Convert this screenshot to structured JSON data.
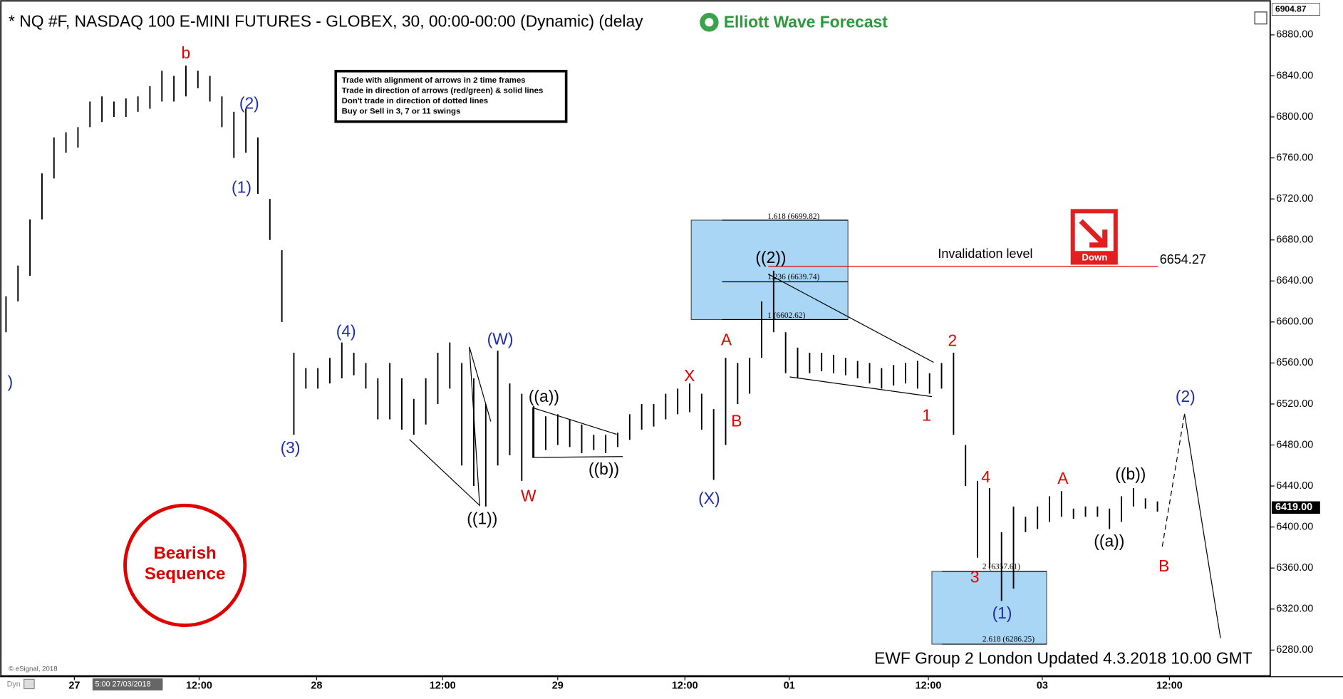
{
  "header": {
    "title": "* NQ #F, NASDAQ 100 E-MINI FUTURES - GLOBEX, 30, 00:00-00:00 (Dynamic) (delay",
    "logo": "Elliott Wave Forecast"
  },
  "chart_data": {
    "type": "ohlc",
    "color": "#000000",
    "highs": [
      6625,
      6655,
      6700,
      6745,
      6780,
      6785,
      6790,
      6815,
      6820,
      6815,
      6818,
      6820,
      6830,
      6845,
      6840,
      6850,
      6845,
      6840,
      6820,
      6805,
      6808,
      6780,
      6720,
      6670,
      6570,
      6555,
      6555,
      6565,
      6580,
      6570,
      6560,
      6545,
      6560,
      6545,
      6525,
      6545,
      6570,
      6580,
      6560,
      6545,
      6520,
      6572,
      6540,
      6530,
      6518,
      6508,
      6510,
      6505,
      6500,
      6490,
      6490,
      6492,
      6510,
      6520,
      6520,
      6530,
      6535,
      6540,
      6530,
      6515,
      6565,
      6560,
      6565,
      6620,
      6650,
      6590,
      6575,
      6570,
      6570,
      6568,
      6565,
      6562,
      6560,
      6555,
      6558,
      6560,
      6562,
      6550,
      6560,
      6570,
      6480,
      6445,
      6438,
      6395,
      6420,
      6410,
      6420,
      6430,
      6435,
      6418,
      6420,
      6420,
      6418,
      6430,
      6438,
      6428,
      6425
    ],
    "lows": [
      6590,
      6620,
      6645,
      6700,
      6740,
      6765,
      6770,
      6790,
      6795,
      6800,
      6800,
      6805,
      6808,
      6815,
      6815,
      6820,
      6828,
      6815,
      6790,
      6760,
      6765,
      6725,
      6680,
      6600,
      6490,
      6535,
      6535,
      6540,
      6545,
      6548,
      6535,
      6505,
      6505,
      6495,
      6490,
      6500,
      6520,
      6535,
      6460,
      6440,
      6420,
      6460,
      6470,
      6445,
      6468,
      6475,
      6480,
      6478,
      6472,
      6475,
      6472,
      6478,
      6485,
      6495,
      6498,
      6505,
      6510,
      6512,
      6495,
      6446,
      6480,
      6520,
      6530,
      6565,
      6590,
      6550,
      6545,
      6550,
      6552,
      6550,
      6548,
      6545,
      6540,
      6535,
      6538,
      6540,
      6535,
      6530,
      6535,
      6490,
      6440,
      6370,
      6360,
      6328,
      6340,
      6395,
      6398,
      6405,
      6410,
      6408,
      6410,
      6410,
      6398,
      6405,
      6420,
      6418,
      6415
    ],
    "xlim": [
      -0.5,
      105.4
    ],
    "xticks": [
      {
        "value": 5.7,
        "label": "27"
      },
      {
        "value": 16.1,
        "label": "12:00"
      },
      {
        "value": 25.9,
        "label": "28"
      },
      {
        "value": 36.4,
        "label": "12:00"
      },
      {
        "value": 46,
        "label": "29"
      },
      {
        "value": 56.6,
        "label": "12:00"
      },
      {
        "value": 65.3,
        "label": "01"
      },
      {
        "value": 76.9,
        "label": "12:00"
      },
      {
        "value": 86.4,
        "label": "03"
      },
      {
        "value": 97,
        "label": "12:00"
      }
    ],
    "ylim": [
      6254,
      6914
    ],
    "yticks": [
      {
        "value": 6280,
        "label": "6280.00"
      },
      {
        "value": 6320,
        "label": "6320.00"
      },
      {
        "value": 6360,
        "label": "6360.00"
      },
      {
        "value": 6400,
        "label": "6400.00"
      },
      {
        "value": 6440,
        "label": "6440.00"
      },
      {
        "value": 6480,
        "label": "6480.00"
      },
      {
        "value": 6520,
        "label": "6520.00"
      },
      {
        "value": 6560,
        "label": "6560.00"
      },
      {
        "value": 6600,
        "label": "6600.00"
      },
      {
        "value": 6640,
        "label": "6640.00"
      },
      {
        "value": 6680,
        "label": "6680.00"
      },
      {
        "value": 6720,
        "label": "6720.00"
      },
      {
        "value": 6760,
        "label": "6760.00"
      },
      {
        "value": 6800,
        "label": "6800.00"
      },
      {
        "value": 6840,
        "label": "6840.00"
      },
      {
        "value": 6880,
        "label": "6880.00"
      }
    ],
    "last_price": {
      "value": 6419,
      "label": "6419.00"
    },
    "top_price": {
      "value": 6904.87,
      "label": "6904.87"
    },
    "invalidation_price": 6654.27
  },
  "annotations": {
    "rules": [
      "Trade with alignment of arrows in 2 time frames",
      "Trade in direction of arrows (red/green) & solid lines",
      "Don't trade in direction of dotted lines",
      "Buy or Sell in 3, 7 or 11 swings"
    ],
    "invalidation_label": "Invalidation level",
    "down": "Down",
    "bearish": [
      "Bearish",
      "Sequence"
    ],
    "footer": "EWF Group 2 London Updated 4.3.2018 10.00 GMT",
    "copyright": "© eSignal, 2018",
    "cursor_time": "5:00 27/03/2018",
    "dyn": "Dyn",
    "fib": [
      "1.618 (6699.82)",
      "1.236 (6639.74)",
      "1 (6602.62)",
      "2 (6357.61)",
      "2.618 (6286.25)"
    ]
  },
  "waves": [
    "b",
    ")",
    "(2)",
    "(1)",
    "(3)",
    "(4)",
    "(W)",
    "((1))",
    "W",
    "((a))",
    "((b))",
    "(X)",
    "X",
    "A",
    "B",
    "((2))",
    "2",
    "1",
    "3",
    "4",
    "(1)",
    "A",
    "((b))",
    "((a))",
    "B",
    "(2)"
  ]
}
